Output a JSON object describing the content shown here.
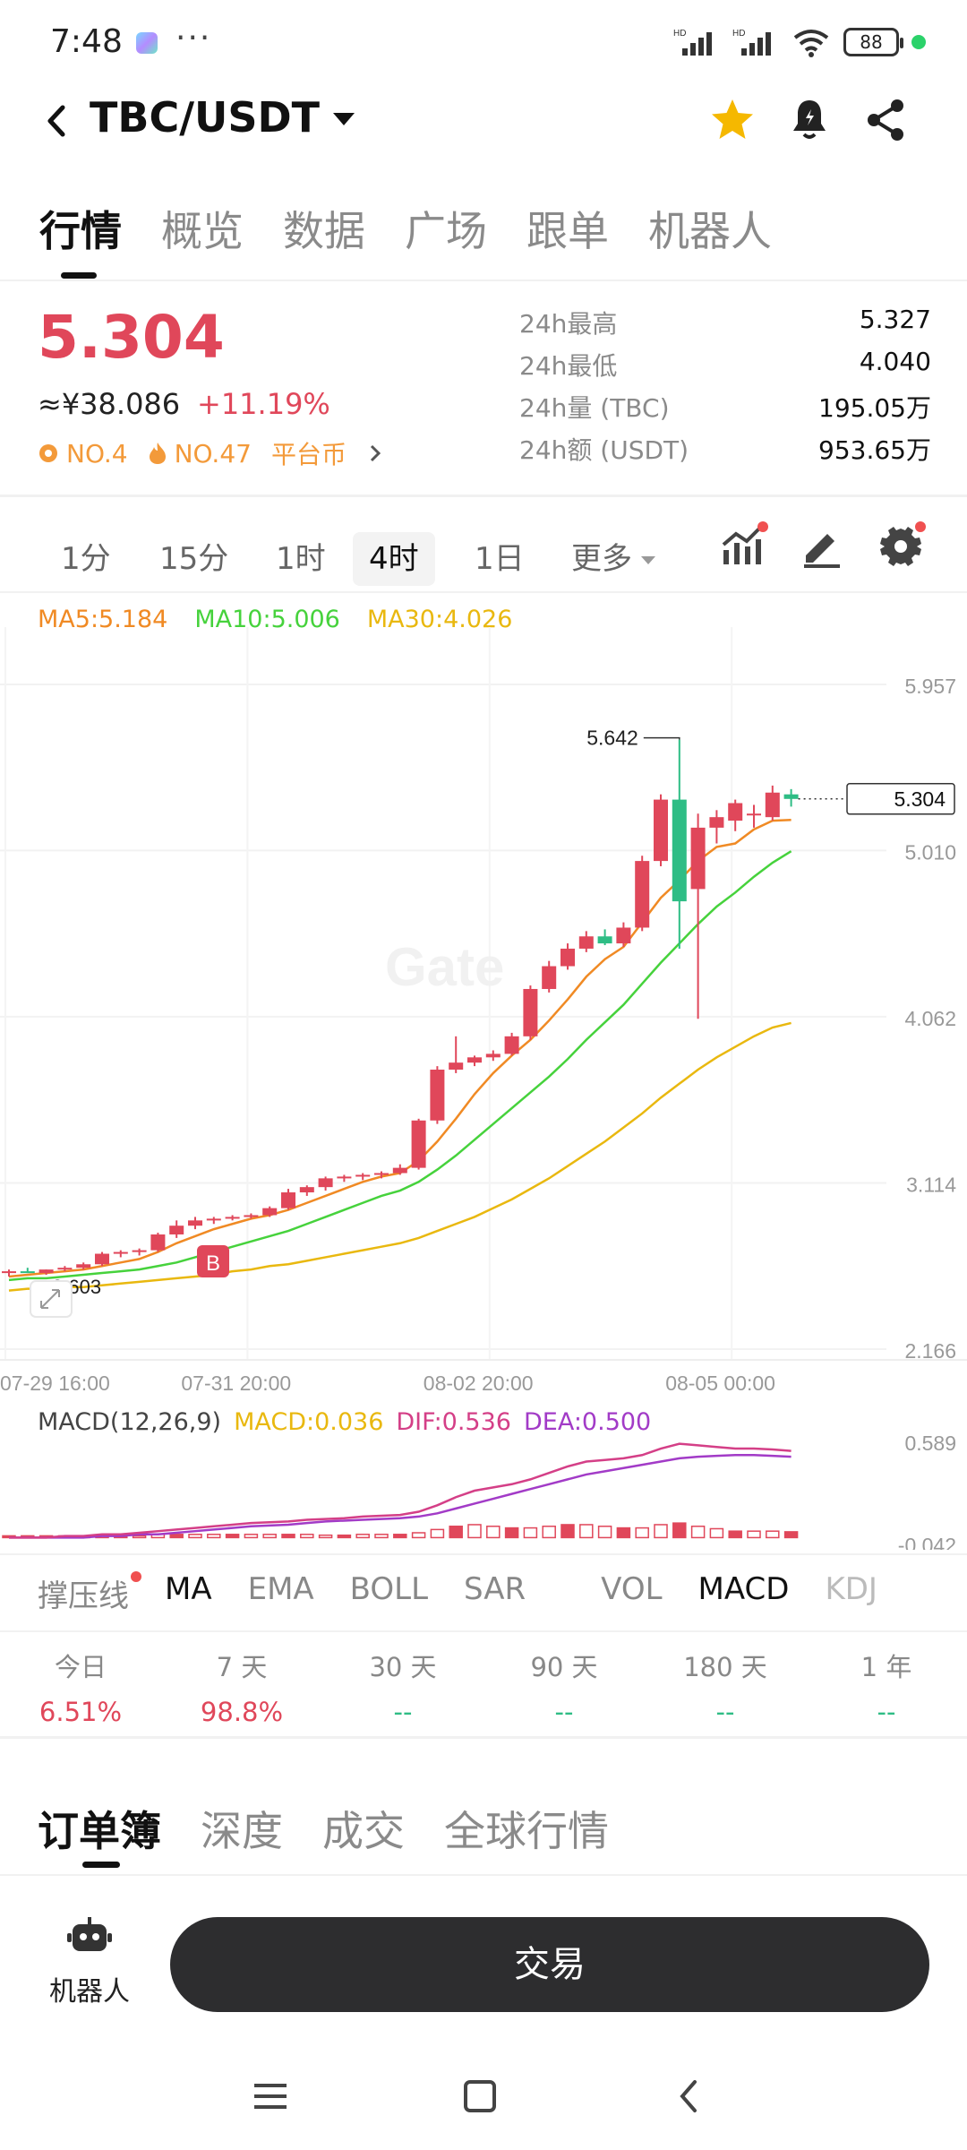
{
  "status_bar": {
    "time": "7:48",
    "overflow": "···",
    "hd1": "HD",
    "hd2": "HD",
    "battery": "88"
  },
  "header": {
    "title": "TBC/USDT",
    "icons": [
      "back-icon",
      "star-icon",
      "bell-icon",
      "share-icon"
    ],
    "star_color": "#f5b800"
  },
  "top_tabs": [
    "行情",
    "概览",
    "数据",
    "广场",
    "跟单",
    "机器人"
  ],
  "price": {
    "last": "5.304",
    "cny": "≈¥38.086",
    "change": "+11.19%",
    "rank1": "NO.4",
    "rank2": "NO.47",
    "category": "平台币",
    "up_color": "#e0475a",
    "down_color": "#2ebd85"
  },
  "stats": [
    {
      "label": "24h最高",
      "value": "5.327"
    },
    {
      "label": "24h最低",
      "value": "4.040"
    },
    {
      "label": "24h量 (TBC)",
      "value": "195.05万"
    },
    {
      "label": "24h额 (USDT)",
      "value": "953.65万"
    }
  ],
  "intervals": [
    "1分",
    "15分",
    "1时",
    "4时",
    "1日",
    "更多"
  ],
  "active_interval": "4时",
  "ma_legend": {
    "ma5": "MA5:5.184",
    "ma10": "MA10:5.006",
    "ma30": "MA30:4.026",
    "ma5_color": "#f08a24",
    "ma10_color": "#46d23c",
    "ma30_color": "#e9b80f"
  },
  "chart_data": {
    "type": "candlestick",
    "y_ticks": [
      "5.957",
      "5.010",
      "4.062",
      "3.114",
      "2.166"
    ],
    "ylim": [
      2.166,
      5.957
    ],
    "x_ticks": [
      "07-29 16:00",
      "07-31 20:00",
      "08-02 20:00",
      "08-05 00:00"
    ],
    "x_tick_index": [
      0,
      13,
      26,
      39
    ],
    "current_price_label": "5.304",
    "high_annotation": "5.642",
    "low_annotation": "2.603",
    "buy_marker": "B",
    "watermark": "Gate",
    "candles": [
      {
        "o": 2.6,
        "h": 2.62,
        "l": 2.58,
        "c": 2.61
      },
      {
        "o": 2.61,
        "h": 2.63,
        "l": 2.6,
        "c": 2.6
      },
      {
        "o": 2.6,
        "h": 2.62,
        "l": 2.59,
        "c": 2.62
      },
      {
        "o": 2.62,
        "h": 2.64,
        "l": 2.61,
        "c": 2.63
      },
      {
        "o": 2.63,
        "h": 2.66,
        "l": 2.62,
        "c": 2.65
      },
      {
        "o": 2.65,
        "h": 2.72,
        "l": 2.64,
        "c": 2.71
      },
      {
        "o": 2.71,
        "h": 2.73,
        "l": 2.69,
        "c": 2.72
      },
      {
        "o": 2.72,
        "h": 2.74,
        "l": 2.7,
        "c": 2.73
      },
      {
        "o": 2.73,
        "h": 2.83,
        "l": 2.72,
        "c": 2.82
      },
      {
        "o": 2.82,
        "h": 2.9,
        "l": 2.8,
        "c": 2.87
      },
      {
        "o": 2.87,
        "h": 2.92,
        "l": 2.85,
        "c": 2.9
      },
      {
        "o": 2.9,
        "h": 2.92,
        "l": 2.88,
        "c": 2.91
      },
      {
        "o": 2.91,
        "h": 2.93,
        "l": 2.9,
        "c": 2.92
      },
      {
        "o": 2.92,
        "h": 2.94,
        "l": 2.91,
        "c": 2.93
      },
      {
        "o": 2.93,
        "h": 2.98,
        "l": 2.92,
        "c": 2.97
      },
      {
        "o": 2.97,
        "h": 3.08,
        "l": 2.96,
        "c": 3.06
      },
      {
        "o": 3.06,
        "h": 3.1,
        "l": 3.04,
        "c": 3.09
      },
      {
        "o": 3.09,
        "h": 3.15,
        "l": 3.07,
        "c": 3.14
      },
      {
        "o": 3.14,
        "h": 3.16,
        "l": 3.12,
        "c": 3.15
      },
      {
        "o": 3.15,
        "h": 3.17,
        "l": 3.13,
        "c": 3.16
      },
      {
        "o": 3.16,
        "h": 3.18,
        "l": 3.14,
        "c": 3.17
      },
      {
        "o": 3.17,
        "h": 3.22,
        "l": 3.16,
        "c": 3.2
      },
      {
        "o": 3.2,
        "h": 3.48,
        "l": 3.19,
        "c": 3.47
      },
      {
        "o": 3.47,
        "h": 3.78,
        "l": 3.45,
        "c": 3.76
      },
      {
        "o": 3.76,
        "h": 3.95,
        "l": 3.74,
        "c": 3.8
      },
      {
        "o": 3.8,
        "h": 3.84,
        "l": 3.78,
        "c": 3.83
      },
      {
        "o": 3.83,
        "h": 3.87,
        "l": 3.81,
        "c": 3.85
      },
      {
        "o": 3.85,
        "h": 3.97,
        "l": 3.84,
        "c": 3.95
      },
      {
        "o": 3.95,
        "h": 4.24,
        "l": 3.93,
        "c": 4.22
      },
      {
        "o": 4.22,
        "h": 4.38,
        "l": 4.2,
        "c": 4.35
      },
      {
        "o": 4.35,
        "h": 4.48,
        "l": 4.33,
        "c": 4.45
      },
      {
        "o": 4.45,
        "h": 4.55,
        "l": 4.43,
        "c": 4.52
      },
      {
        "o": 4.52,
        "h": 4.56,
        "l": 4.47,
        "c": 4.48
      },
      {
        "o": 4.48,
        "h": 4.6,
        "l": 4.46,
        "c": 4.57
      },
      {
        "o": 4.57,
        "h": 4.98,
        "l": 4.55,
        "c": 4.95
      },
      {
        "o": 4.95,
        "h": 5.33,
        "l": 4.92,
        "c": 5.3
      },
      {
        "o": 5.3,
        "h": 5.642,
        "l": 4.45,
        "c": 4.72
      },
      {
        "o": 4.79,
        "h": 5.22,
        "l": 4.05,
        "c": 5.14
      },
      {
        "o": 5.14,
        "h": 5.24,
        "l": 5.05,
        "c": 5.2
      },
      {
        "o": 5.18,
        "h": 5.3,
        "l": 5.12,
        "c": 5.28
      },
      {
        "o": 5.21,
        "h": 5.27,
        "l": 5.14,
        "c": 5.22
      },
      {
        "o": 5.2,
        "h": 5.38,
        "l": 5.18,
        "c": 5.34
      },
      {
        "o": 5.33,
        "h": 5.36,
        "l": 5.26,
        "c": 5.304
      }
    ],
    "ma5": [
      2.58,
      2.59,
      2.6,
      2.61,
      2.62,
      2.64,
      2.66,
      2.68,
      2.72,
      2.77,
      2.81,
      2.85,
      2.88,
      2.91,
      2.93,
      2.96,
      3.0,
      3.04,
      3.08,
      3.12,
      3.15,
      3.17,
      3.24,
      3.35,
      3.48,
      3.62,
      3.74,
      3.84,
      3.93,
      4.04,
      4.16,
      4.29,
      4.39,
      4.46,
      4.6,
      4.74,
      4.84,
      4.95,
      5.03,
      5.05,
      5.13,
      5.18,
      5.184
    ],
    "ma10": [
      2.56,
      2.57,
      2.57,
      2.58,
      2.59,
      2.6,
      2.61,
      2.62,
      2.64,
      2.66,
      2.69,
      2.72,
      2.75,
      2.78,
      2.81,
      2.84,
      2.88,
      2.92,
      2.96,
      3.0,
      3.04,
      3.07,
      3.12,
      3.19,
      3.27,
      3.36,
      3.45,
      3.54,
      3.63,
      3.72,
      3.82,
      3.93,
      4.03,
      4.13,
      4.25,
      4.37,
      4.48,
      4.59,
      4.69,
      4.77,
      4.86,
      4.94,
      5.006
    ],
    "ma30": [
      2.5,
      2.51,
      2.51,
      2.52,
      2.52,
      2.53,
      2.54,
      2.55,
      2.56,
      2.57,
      2.58,
      2.59,
      2.61,
      2.62,
      2.64,
      2.65,
      2.67,
      2.69,
      2.71,
      2.73,
      2.75,
      2.77,
      2.8,
      2.84,
      2.88,
      2.92,
      2.97,
      3.02,
      3.08,
      3.14,
      3.21,
      3.28,
      3.35,
      3.43,
      3.51,
      3.6,
      3.68,
      3.76,
      3.83,
      3.89,
      3.95,
      4.0,
      4.026
    ]
  },
  "macd": {
    "legend_title": "MACD(12,26,9)",
    "macd": "MACD:0.036",
    "dif": "DIF:0.536",
    "dea": "DEA:0.500",
    "macd_color": "#e9b80f",
    "dif_color": "#d43f87",
    "dea_color": "#a23bc7",
    "y_ticks": [
      "0.589",
      "-0.042"
    ],
    "ylim": [
      -0.042,
      0.589
    ],
    "dif_values": [
      0.0,
      0.0,
      0.0,
      0.01,
      0.01,
      0.02,
      0.02,
      0.03,
      0.04,
      0.05,
      0.06,
      0.07,
      0.08,
      0.09,
      0.095,
      0.1,
      0.11,
      0.115,
      0.12,
      0.13,
      0.135,
      0.14,
      0.16,
      0.2,
      0.25,
      0.29,
      0.31,
      0.33,
      0.36,
      0.4,
      0.44,
      0.47,
      0.48,
      0.49,
      0.51,
      0.55,
      0.58,
      0.57,
      0.56,
      0.55,
      0.55,
      0.545,
      0.536
    ],
    "dea_values": [
      0.0,
      0.0,
      0.0,
      0.0,
      0.0,
      0.01,
      0.01,
      0.02,
      0.02,
      0.03,
      0.04,
      0.05,
      0.06,
      0.07,
      0.075,
      0.08,
      0.09,
      0.1,
      0.105,
      0.11,
      0.115,
      0.12,
      0.13,
      0.15,
      0.18,
      0.21,
      0.24,
      0.27,
      0.3,
      0.33,
      0.36,
      0.39,
      0.41,
      0.43,
      0.45,
      0.47,
      0.49,
      0.5,
      0.505,
      0.51,
      0.51,
      0.505,
      0.5
    ],
    "hist_values": [
      0.0,
      0.0,
      0.0,
      0.01,
      0.01,
      0.01,
      0.01,
      0.01,
      0.02,
      0.02,
      0.02,
      0.02,
      0.02,
      0.02,
      0.02,
      0.02,
      0.02,
      0.015,
      0.015,
      0.02,
      0.02,
      0.02,
      0.03,
      0.05,
      0.07,
      0.08,
      0.07,
      0.06,
      0.06,
      0.07,
      0.08,
      0.08,
      0.07,
      0.06,
      0.06,
      0.08,
      0.09,
      0.07,
      0.055,
      0.04,
      0.04,
      0.04,
      0.036
    ]
  },
  "indicator_tabs": [
    "撑压线",
    "MA",
    "EMA",
    "BOLL",
    "SAR",
    "VOL",
    "MACD",
    "KDJ"
  ],
  "periods": [
    {
      "label": "今日",
      "value": "6.51%"
    },
    {
      "label": "7 天",
      "value": "98.8%"
    },
    {
      "label": "30 天",
      "value": "--"
    },
    {
      "label": "90 天",
      "value": "--"
    },
    {
      "label": "180 天",
      "value": "--"
    },
    {
      "label": "1 年",
      "value": "--"
    }
  ],
  "order_tabs": [
    "订单簿",
    "深度",
    "成交",
    "全球行情"
  ],
  "bottom": {
    "robot_label": "机器人",
    "trade_label": "交易"
  },
  "nav": [
    "menu-icon",
    "home-icon",
    "back-nav-icon"
  ]
}
